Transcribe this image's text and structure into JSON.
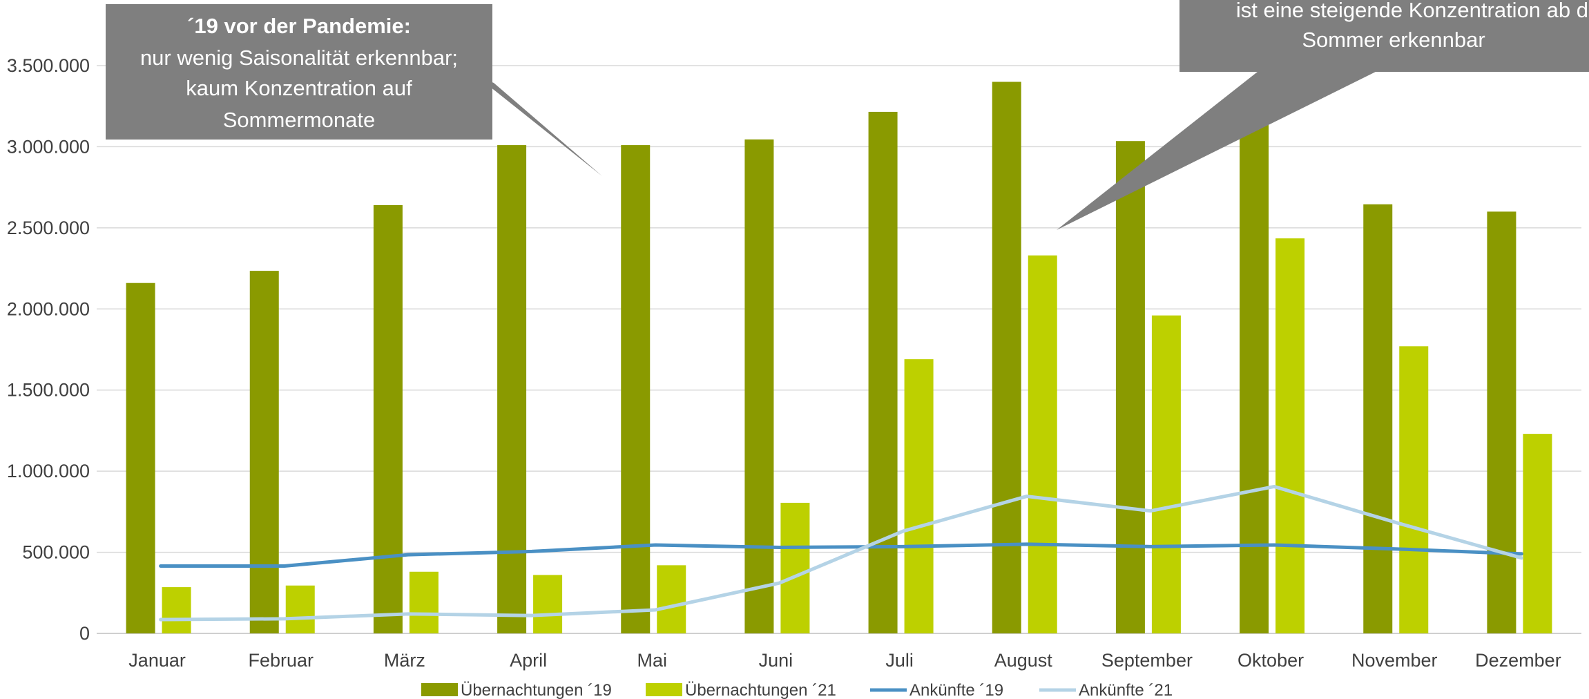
{
  "chart_data": {
    "type": "bar",
    "categories": [
      "Januar",
      "Februar",
      "März",
      "April",
      "Mai",
      "Juni",
      "Juli",
      "August",
      "September",
      "Oktober",
      "November",
      "Dezember"
    ],
    "ylim": [
      0,
      3500000
    ],
    "yticks": [
      0,
      500000,
      1000000,
      1500000,
      2000000,
      2500000,
      3000000,
      3500000
    ],
    "ytick_labels": [
      "0",
      "500.000",
      "1.000.000",
      "1.500.000",
      "2.000.000",
      "2.500.000",
      "3.000.000",
      "3.500.000"
    ],
    "grid": true,
    "legend_position": "bottom",
    "bar_series": [
      {
        "name": "Übernachtungen ´19",
        "color": "#8a9a00",
        "values": [
          2160000,
          2235000,
          2640000,
          3010000,
          3010000,
          3045000,
          3215000,
          3400000,
          3035000,
          3140000,
          2645000,
          2600000
        ]
      },
      {
        "name": "Übernachtungen ´21",
        "color": "#bdd000",
        "values": [
          285000,
          295000,
          380000,
          360000,
          420000,
          805000,
          1690000,
          2330000,
          1960000,
          2435000,
          1770000,
          1230000
        ]
      }
    ],
    "line_series": [
      {
        "name": "Ankünfte ´19",
        "color": "#4a90c4",
        "values": [
          415000,
          415000,
          485000,
          505000,
          545000,
          530000,
          535000,
          550000,
          535000,
          545000,
          520000,
          490000
        ]
      },
      {
        "name": "Ankünfte ´21",
        "color": "#b4d3e6",
        "values": [
          85000,
          90000,
          120000,
          110000,
          145000,
          310000,
          630000,
          845000,
          755000,
          905000,
          680000,
          465000
        ]
      }
    ],
    "annotations": [
      {
        "lines": [
          "´19 vor der Pandemie:",
          "nur wenig Saisonalität erkennbar;",
          "kaum Konzentration auf",
          "Sommermonate"
        ],
        "bold_first": true
      },
      {
        "lines": [
          "ist eine steigende Konzentration ab d",
          "Sommer erkennbar"
        ],
        "bold_first": false
      }
    ]
  }
}
